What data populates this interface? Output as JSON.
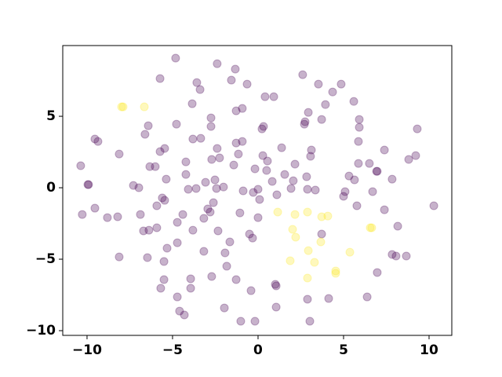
{
  "chart_data": {
    "type": "scatter",
    "xlim": [
      -11.42,
      11.33
    ],
    "ylim": [
      -10.33,
      9.95
    ],
    "xticks": [
      {
        "value": -10,
        "label": "−10"
      },
      {
        "value": -5,
        "label": "−5"
      },
      0,
      5,
      10
    ],
    "yticks": [
      {
        "value": -10,
        "label": "−10"
      },
      {
        "value": -5,
        "label": "−5"
      },
      0,
      5
    ],
    "opacity": 0.3,
    "series": [
      {
        "color": "#440154",
        "x": [
          -4.82,
          -2.39,
          -1.33,
          -5.73,
          -1.56,
          -0.64,
          -3.58,
          -3.39,
          2.61,
          3.53,
          4.86,
          4.36,
          0.41,
          0.92,
          -3.85,
          3.94,
          -0.92,
          -1.28,
          2.94,
          2.75,
          2.71,
          3.72,
          -2.75,
          5.6,
          5.92,
          5.92,
          -4.77,
          -6.42,
          -6.61,
          -9.54,
          -9.36,
          -3.81,
          -3.35,
          -2.75,
          -2.39,
          -2.25,
          -2.71,
          -1.28,
          -0.92,
          0.32,
          0.23,
          1.38,
          3.12,
          3.07,
          2.16,
          0.55,
          0.28,
          5.87,
          5.87,
          7.39,
          6.51,
          6.93,
          6.97,
          8.81,
          9.22,
          9.31,
          5.32,
          5.64,
          6.7,
          7.84,
          -8.12,
          -5.73,
          -5.46,
          -6.33,
          -6.01,
          -4.22,
          -4.22,
          -10.37,
          -9.95,
          -9.91,
          -7.29,
          -6.97,
          -5.37,
          -5.6,
          -5.46,
          -5.92,
          -4.08,
          -3.62,
          -3.07,
          -2.43,
          -2.52,
          -2.02,
          -1.42,
          -1.15,
          -0.18,
          0.5,
          1.56,
          0.83,
          2.06,
          2.84,
          2.89,
          3.35,
          1.93,
          1.1,
          -0.28,
          0,
          -0.87,
          -1.06,
          0.09,
          0,
          -0.5,
          -0.32,
          -1.65,
          -2.34,
          -2.61,
          -2.8,
          -2.94,
          -3.17,
          -4.4,
          -3.81,
          -4.72,
          -4.72,
          -3.17,
          -1.93,
          -1.83,
          -1.28,
          -2.71,
          -5.92,
          -5.32,
          -5.5,
          -5.5,
          -5.69,
          -6.47,
          -6.7,
          -6.38,
          -6.88,
          -8.21,
          -8.81,
          -10.28,
          -9.54,
          -8.12,
          -3.94,
          -3.94,
          -4.72,
          -4.59,
          -4.31,
          -1.97,
          -1.01,
          -0.18,
          -0.41,
          1.01,
          1.06,
          1.06,
          3.72,
          5.09,
          5.78,
          7.39,
          8.17,
          7.84,
          8.07,
          8.67,
          6.97,
          6.38,
          2.89,
          4.13,
          10.28,
          5.0,
          3.03
        ],
        "y": [
          9.07,
          8.68,
          8.3,
          7.64,
          7.53,
          7.25,
          7.36,
          6.87,
          7.91,
          7.25,
          7.25,
          6.7,
          6.37,
          6.37,
          5.88,
          5.82,
          5.55,
          5.38,
          5.27,
          4.62,
          4.45,
          4.78,
          4.89,
          6.04,
          4.78,
          4.23,
          4.45,
          4.34,
          3.74,
          3.41,
          3.24,
          3.41,
          3.46,
          4.29,
          2.75,
          2.09,
          1.98,
          3.13,
          3.24,
          4.29,
          4.12,
          2.8,
          2.64,
          2.2,
          1.65,
          1.87,
          2.25,
          3.24,
          1.7,
          2.64,
          1.7,
          1.15,
          1.15,
          1.98,
          2.25,
          4.12,
          0.82,
          0.55,
          -0.27,
          0.6,
          2.36,
          2.53,
          2.75,
          1.48,
          1.48,
          1.81,
          0.93,
          1.54,
          0.22,
          0.22,
          0.16,
          0,
          0.6,
          -0.71,
          -0.88,
          -1.26,
          -0.11,
          -0.05,
          0.38,
          -0.05,
          0.55,
          0.05,
          1.59,
          2.36,
          1.32,
          1.21,
          0.93,
          0.44,
          0.49,
          0.77,
          -0.11,
          -0.16,
          -0.05,
          -0.49,
          -0.33,
          -0.11,
          -0.22,
          -1.76,
          -0.82,
          -2.09,
          -3.24,
          -3.52,
          -3.79,
          -3.02,
          -1.04,
          -1.7,
          -1.48,
          -2.14,
          -1.87,
          -2.97,
          -2.42,
          -3.85,
          -4.45,
          -4.56,
          -5.49,
          -6.43,
          -6.21,
          -2.8,
          -4.23,
          -5.16,
          -6.43,
          -7.03,
          -4.89,
          -3.02,
          -2.97,
          -1.87,
          -2.03,
          -2.09,
          -1.87,
          -1.43,
          -4.84,
          -6.37,
          -7.03,
          -7.64,
          -8.63,
          -8.9,
          -8.41,
          -9.34,
          -9.34,
          -7.2,
          -6.76,
          -6.87,
          -8.35,
          -3.24,
          -0.27,
          -1.26,
          -1.54,
          -2.69,
          -4.67,
          -4.78,
          -4.78,
          -5.93,
          -7.64,
          -7.8,
          -7.75,
          -1.26,
          -0.6,
          -9.34
        ]
      },
      {
        "color": "#fde725",
        "x": [
          -7.98,
          -7.89,
          -6.65,
          1.15,
          2.16,
          2.02,
          2.2,
          1.88,
          2.89,
          4.08,
          3.72,
          3.67,
          2.94,
          3.3,
          2.89,
          4.54,
          4.54,
          5.37,
          6.56,
          6.65
        ],
        "y": [
          5.66,
          5.66,
          5.66,
          -1.7,
          -1.87,
          -2.91,
          -3.46,
          -5.11,
          -1.7,
          -1.98,
          -2.03,
          -3.79,
          -4.4,
          -5.22,
          -6.32,
          -5.82,
          -5.99,
          -4.51,
          -2.8,
          -2.8
        ]
      }
    ]
  }
}
